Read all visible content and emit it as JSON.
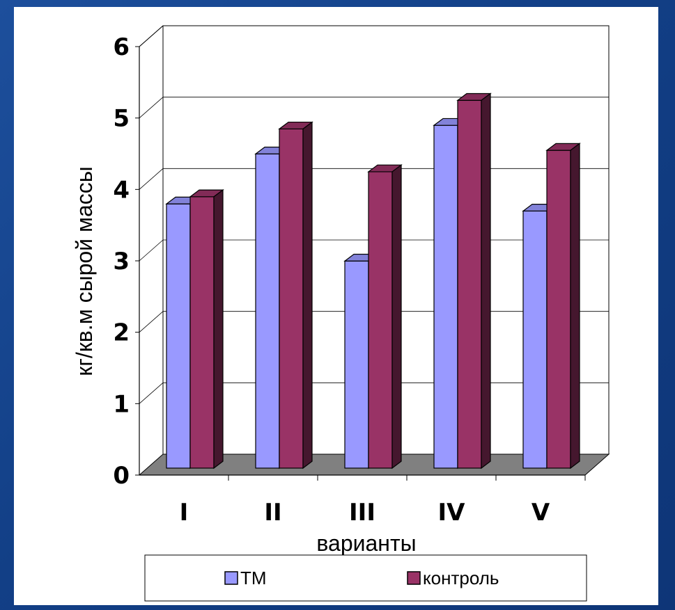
{
  "chart_data": {
    "type": "bar",
    "categories": [
      "I",
      "II",
      "III",
      "IV",
      "V"
    ],
    "series": [
      {
        "name": "ТМ",
        "values": [
          3.7,
          4.4,
          2.9,
          4.8,
          3.6
        ],
        "color": "#9999ff"
      },
      {
        "name": "контроль",
        "values": [
          3.8,
          4.75,
          4.15,
          5.15,
          4.45
        ],
        "color": "#993366"
      }
    ],
    "xlabel": "варианты",
    "ylabel": "кг/кв.м сырой массы",
    "ylim": [
      0,
      6
    ],
    "yticks": [
      "0",
      "1",
      "2",
      "3",
      "4",
      "5",
      "6"
    ],
    "grid": true,
    "style": "3d-clustered-bar",
    "legend_position": "bottom"
  }
}
